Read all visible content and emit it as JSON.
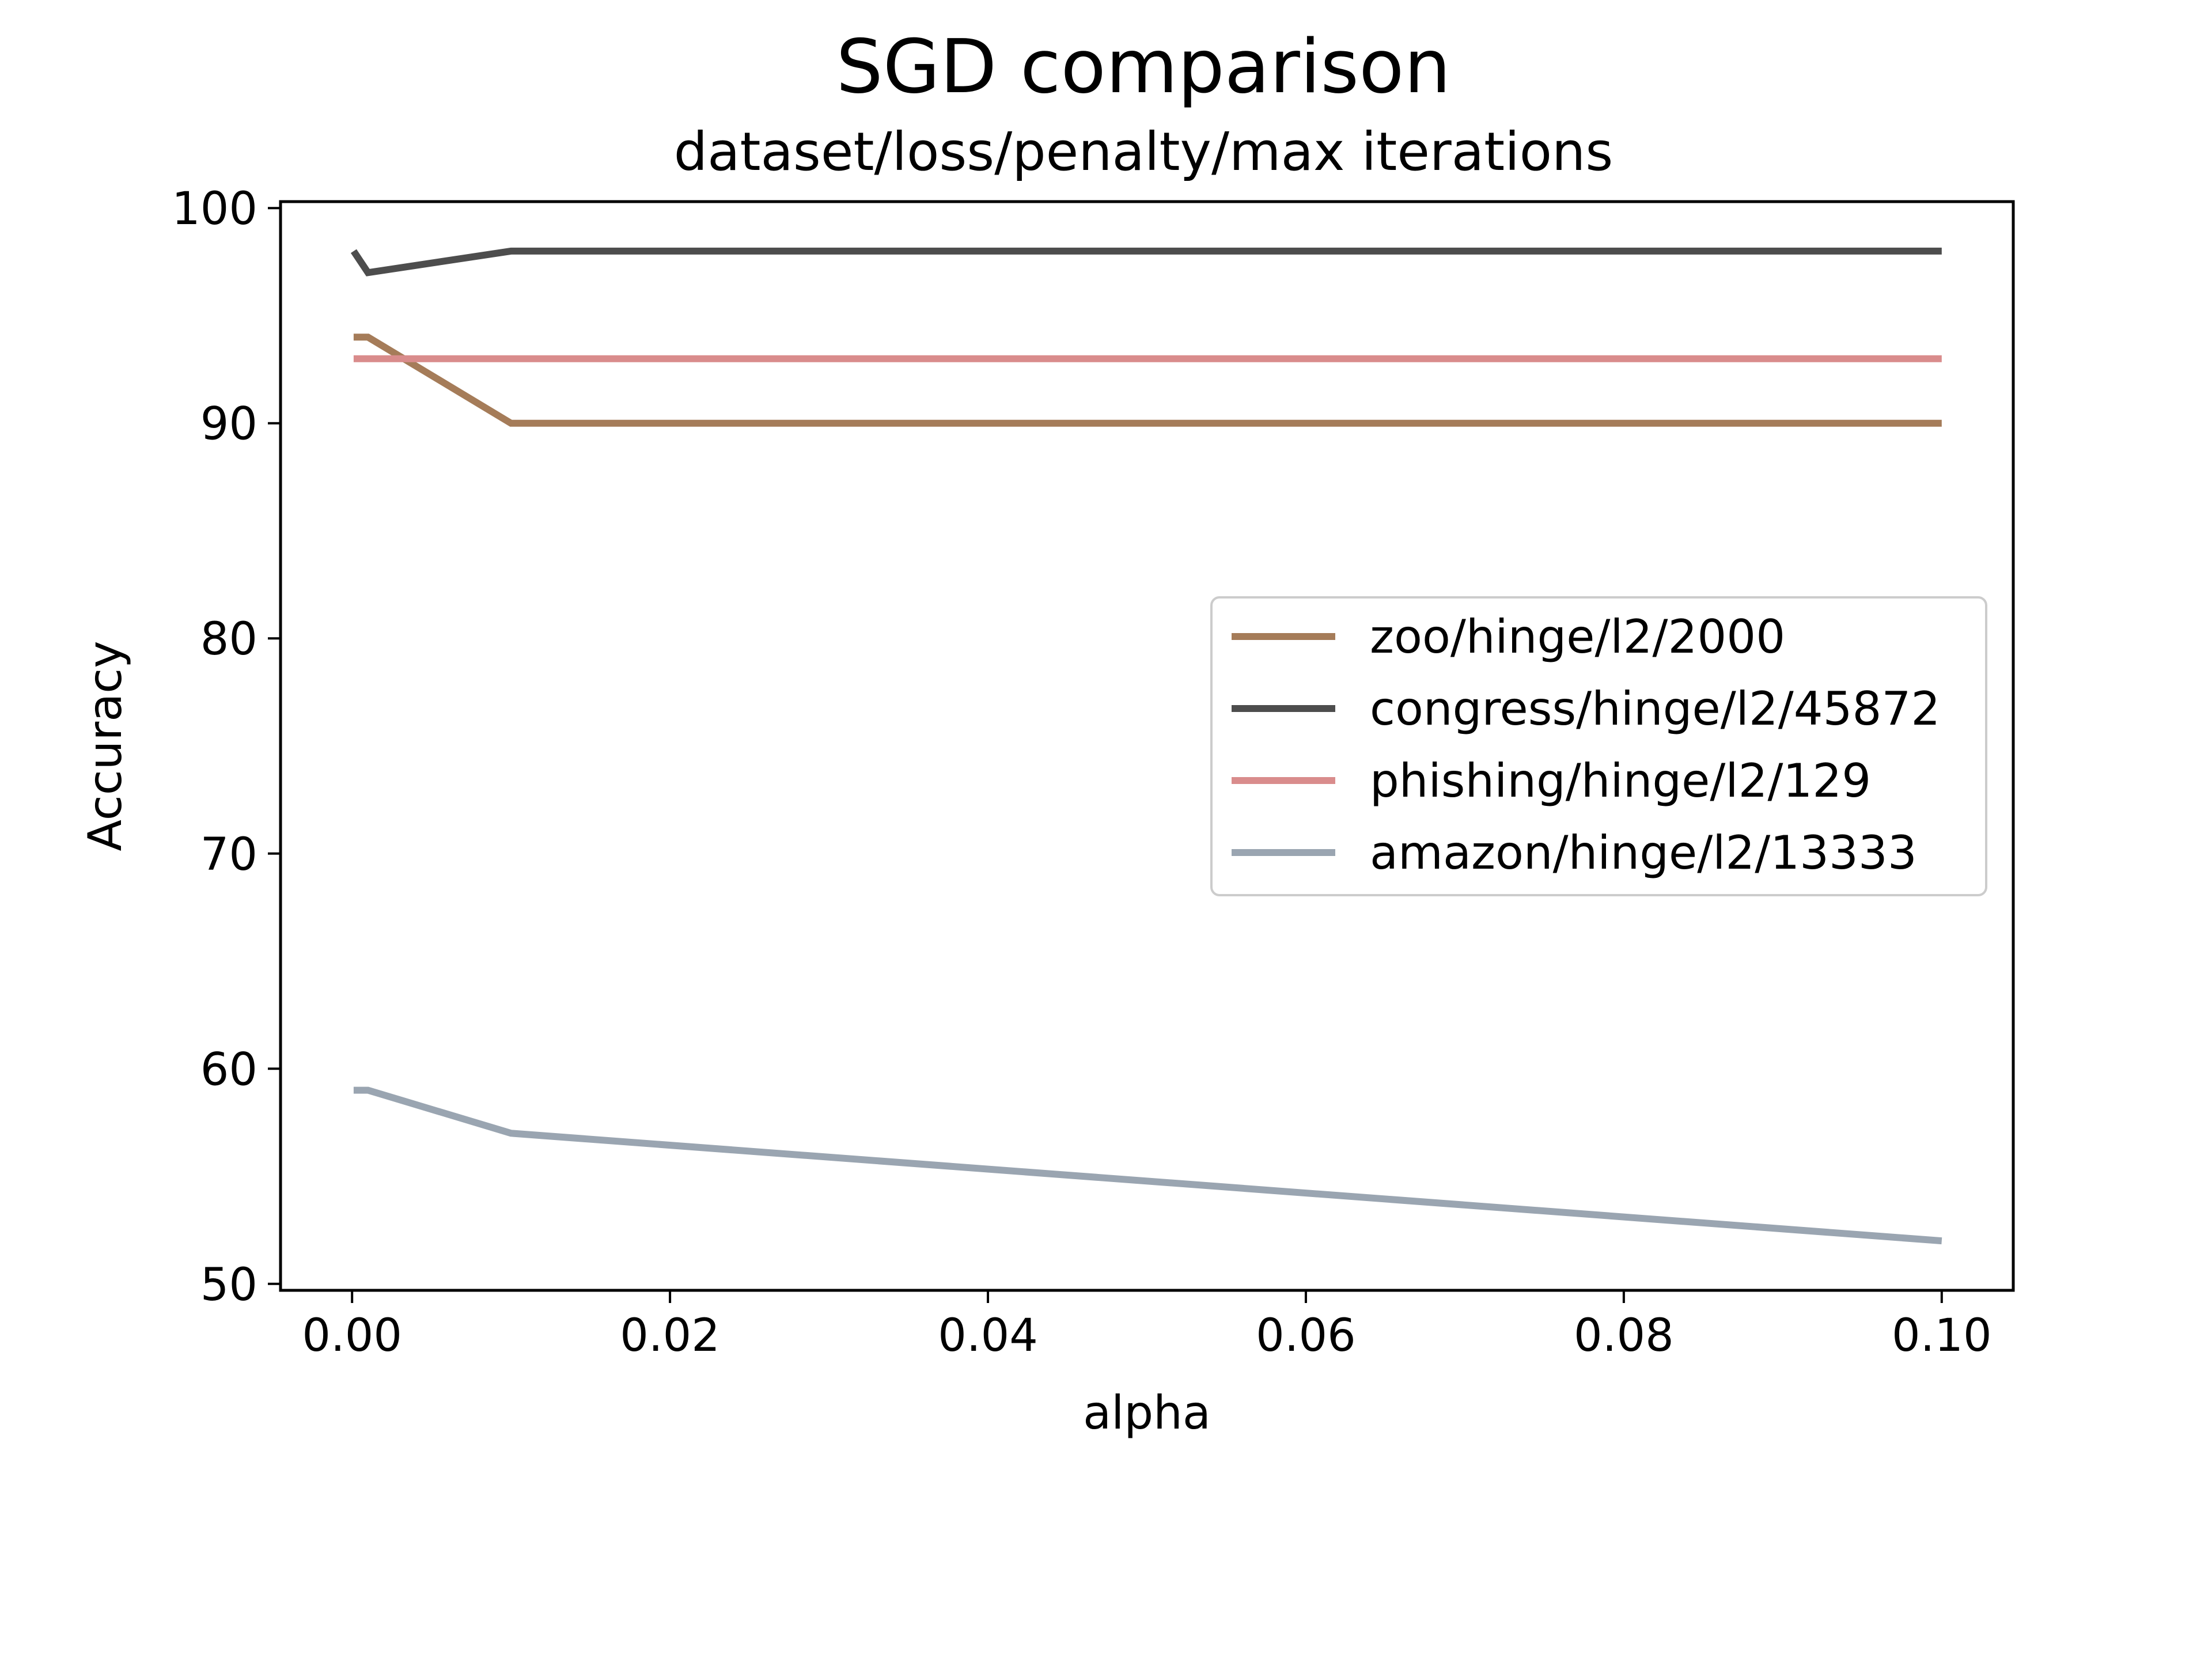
{
  "chart_data": {
    "type": "line",
    "title": "SGD comparison",
    "subtitle": "dataset/loss/penalty/max iterations",
    "xlabel": "alpha",
    "ylabel": "Accuracy",
    "xlim": [
      -0.0045,
      0.1045
    ],
    "ylim": [
      49.7,
      100.3
    ],
    "xticks": [
      0.0,
      0.02,
      0.04,
      0.06,
      0.08,
      0.1
    ],
    "xtick_labels": [
      "0.00",
      "0.02",
      "0.04",
      "0.06",
      "0.08",
      "0.10"
    ],
    "yticks": [
      50,
      60,
      70,
      80,
      90,
      100
    ],
    "ytick_labels": [
      "50",
      "60",
      "70",
      "80",
      "90",
      "100"
    ],
    "grid": false,
    "legend_position": "center-right",
    "series": [
      {
        "name": "zoo/hinge/l2/2000",
        "color": "#a57c59",
        "x": [
          0.0001,
          0.001,
          0.01,
          0.1
        ],
        "y": [
          94,
          94,
          90,
          90
        ]
      },
      {
        "name": "congress/hinge/l2/45872",
        "color": "#4d4d4d",
        "x": [
          0.0001,
          0.001,
          0.01,
          0.1
        ],
        "y": [
          98,
          97,
          98,
          98
        ]
      },
      {
        "name": "phishing/hinge/l2/129",
        "color": "#d98c8c",
        "x": [
          0.0001,
          0.001,
          0.01,
          0.1
        ],
        "y": [
          93,
          93,
          93,
          93
        ]
      },
      {
        "name": "amazon/hinge/l2/13333",
        "color": "#9aa5b1",
        "x": [
          0.0001,
          0.001,
          0.01,
          0.1
        ],
        "y": [
          59,
          59,
          57,
          52
        ]
      }
    ]
  }
}
